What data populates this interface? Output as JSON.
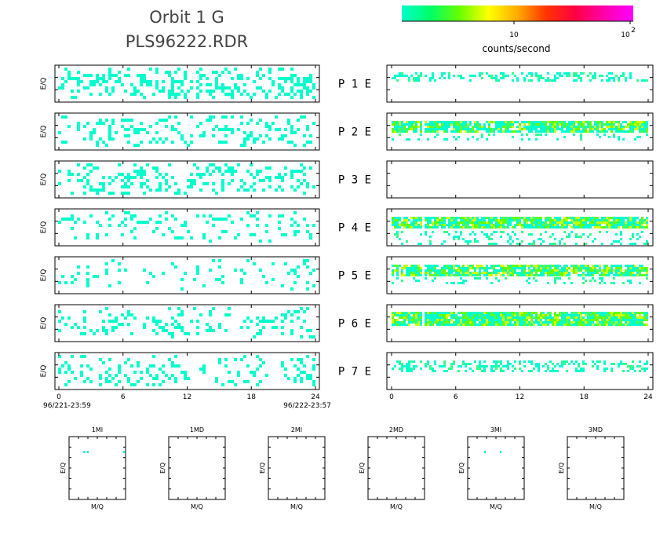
{
  "header": {
    "title_line1": "Orbit 1 G",
    "title_line2": "PLS96222.RDR"
  },
  "colorbar": {
    "label": "counts/second",
    "tick_10": "10",
    "tick_100_base": "10",
    "tick_100_exp": "2",
    "colors": [
      "#00ffcc",
      "#00ff66",
      "#66ff00",
      "#ffff00",
      "#ffaa00",
      "#ff3300",
      "#ff0044",
      "#ff00aa",
      "#ff00ff"
    ]
  },
  "chart_data": {
    "type": "heatmap",
    "ylabel": "E/Q",
    "x_ticks": [
      "0",
      "6",
      "12",
      "18",
      "24"
    ],
    "xlim": [
      0,
      24
    ],
    "left_start_label": "96/221-23:59",
    "left_end_label": "96/222-23:57",
    "rows": [
      {
        "label": "P 1 E",
        "left_density": 0.35,
        "right_type": "sparse"
      },
      {
        "label": "P 2 E",
        "left_density": 0.22,
        "right_type": "band"
      },
      {
        "label": "P 3 E",
        "left_density": 0.24,
        "right_type": "empty"
      },
      {
        "label": "P 4 E",
        "left_density": 0.14,
        "right_type": "band_wide"
      },
      {
        "label": "P 5 E",
        "left_density": 0.13,
        "right_type": "band"
      },
      {
        "label": "P 6 E",
        "left_density": 0.2,
        "right_type": "band_strong"
      },
      {
        "label": "P 7 E",
        "left_density": 0.2,
        "right_type": "sparse_mid"
      }
    ],
    "mini_panels": [
      {
        "title": "1MI",
        "xlabel": "M/Q",
        "ylabel": "E/Q"
      },
      {
        "title": "1MD",
        "xlabel": "M/Q",
        "ylabel": "E/Q"
      },
      {
        "title": "2MI",
        "xlabel": "M/Q",
        "ylabel": "E/Q"
      },
      {
        "title": "2MD",
        "xlabel": "M/Q",
        "ylabel": "E/Q"
      },
      {
        "title": "3MI",
        "xlabel": "M/Q",
        "ylabel": "E/Q"
      },
      {
        "title": "3MD",
        "xlabel": "M/Q",
        "ylabel": "E/Q"
      }
    ]
  }
}
